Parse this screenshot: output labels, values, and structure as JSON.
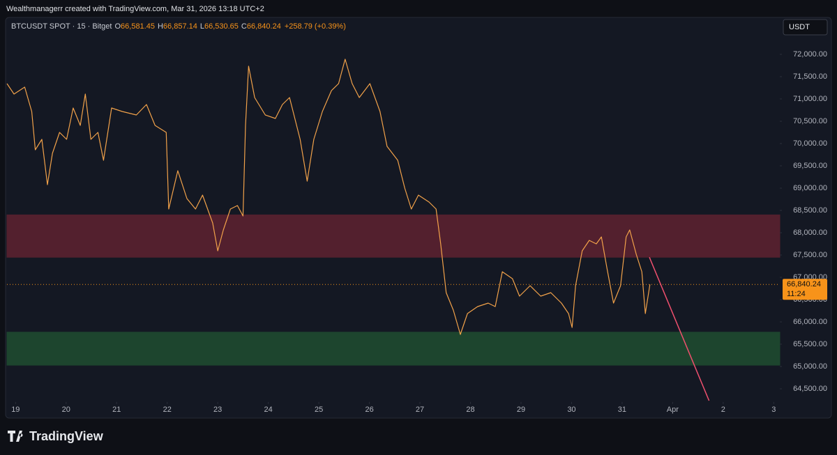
{
  "header": {
    "attribution": "Wealthmanagerr created with TradingView.com, Mar 31, 2026 13:18 UTC+2"
  },
  "chart_data": {
    "type": "line",
    "symbol": "BTCUSDT SPOT · 15 · Bitget",
    "ohlc": [
      {
        "key": "O",
        "value": "66,581.45"
      },
      {
        "key": "H",
        "value": "66,857.14"
      },
      {
        "key": "L",
        "value": "66,530.65"
      },
      {
        "key": "C",
        "value": "66,840.24"
      }
    ],
    "change": "+258.79 (+0.39%)",
    "currency": "USDT",
    "x": [
      18.83,
      18.97,
      19.18,
      19.32,
      19.39,
      19.52,
      19.63,
      19.73,
      19.87,
      20.01,
      20.14,
      20.28,
      20.38,
      20.49,
      20.63,
      20.74,
      20.9,
      21.11,
      21.39,
      21.59,
      21.76,
      21.98,
      22.03,
      22.21,
      22.39,
      22.56,
      22.7,
      22.9,
      23.0,
      23.11,
      23.25,
      23.39,
      23.5,
      23.55,
      23.61,
      23.73,
      23.94,
      24.14,
      24.28,
      24.42,
      24.63,
      24.77,
      24.9,
      25.07,
      25.25,
      25.39,
      25.52,
      25.66,
      25.8,
      26.01,
      26.21,
      26.35,
      26.56,
      26.7,
      26.83,
      26.97,
      27.18,
      27.32,
      27.41,
      27.52,
      27.66,
      27.8,
      27.94,
      28.14,
      28.35,
      28.49,
      28.63,
      28.83,
      28.97,
      29.18,
      29.39,
      29.59,
      29.8,
      29.94,
      30.01,
      30.08,
      30.21,
      30.35,
      30.49,
      30.59,
      30.7,
      30.83,
      30.97,
      31.08,
      31.15,
      31.28,
      31.39,
      31.46,
      31.55
    ],
    "series": [
      {
        "color": "#f2a24a",
        "values": [
          71344,
          71109,
          71266,
          70719,
          69859,
          70094,
          69078,
          69781,
          70250,
          70094,
          70797,
          70406,
          71109,
          70094,
          70250,
          69625,
          70797,
          70719,
          70641,
          70875,
          70406,
          70250,
          68531,
          69391,
          68766,
          68531,
          68844,
          68219,
          67594,
          68063,
          68531,
          68609,
          68375,
          70406,
          71734,
          71031,
          70641,
          70563,
          70875,
          71031,
          70094,
          69156,
          70094,
          70719,
          71188,
          71344,
          71891,
          71344,
          71031,
          71344,
          70719,
          69938,
          69625,
          69000,
          68531,
          68844,
          68688,
          68531,
          67750,
          66656,
          66266,
          65719,
          66188,
          66344,
          66422,
          66344,
          67125,
          66969,
          66578,
          66813,
          66578,
          66656,
          66422,
          66188,
          65875,
          66813,
          67594,
          67828,
          67750,
          67906,
          67203,
          66422,
          66813,
          67906,
          68063,
          67516,
          67125,
          66188,
          66840.24
        ]
      }
    ],
    "xlim": [
      18.83,
      34.12
    ],
    "ylim": [
      64300,
      72800
    ],
    "xticks": [
      19,
      20,
      21,
      22,
      23,
      24,
      25,
      26,
      27,
      28,
      29,
      30,
      31,
      {
        "value": 32,
        "label": "Apr"
      },
      {
        "value": 33,
        "label": "2"
      },
      {
        "value": 34,
        "label": "3"
      }
    ],
    "yticks": [
      {
        "value": 64500,
        "label": "64,500.00"
      },
      {
        "value": 65000,
        "label": "65,000.00"
      },
      {
        "value": 65500,
        "label": "65,500.00"
      },
      {
        "value": 66000,
        "label": "66,000.00"
      },
      {
        "value": 66500,
        "label": "66,500.00"
      },
      {
        "value": 67000,
        "label": "67,000.00"
      },
      {
        "value": 67500,
        "label": "67,500.00"
      },
      {
        "value": 68000,
        "label": "68,000.00"
      },
      {
        "value": 68500,
        "label": "68,500.00"
      },
      {
        "value": 69000,
        "label": "69,000.00"
      },
      {
        "value": 69500,
        "label": "69,500.00"
      },
      {
        "value": 70000,
        "label": "70,000.00"
      },
      {
        "value": 70500,
        "label": "70,500.00"
      },
      {
        "value": 71000,
        "label": "71,000.00"
      },
      {
        "value": 71500,
        "label": "71,500.00"
      },
      {
        "value": 72000,
        "label": "72,000.00"
      }
    ],
    "zones": [
      {
        "from": 67450,
        "to": 68400,
        "color": "#5a2130"
      },
      {
        "from": 65030,
        "to": 65770,
        "color": "#1f4a30"
      }
    ],
    "trend_line": {
      "x": [
        31.54,
        32.72
      ],
      "y": [
        67450,
        64234
      ],
      "color": "#f0506e"
    },
    "last_price": {
      "value": 66840.24,
      "label": "66,840.24",
      "countdown": "11:24",
      "color": "#f7931a"
    }
  },
  "footer": {
    "brand": "TradingView"
  }
}
